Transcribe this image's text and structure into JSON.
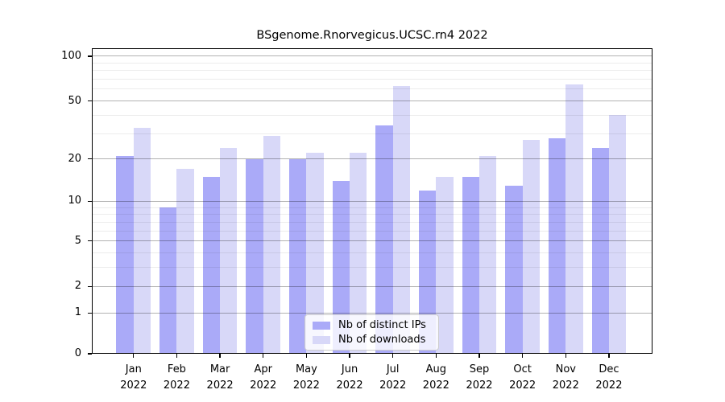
{
  "chart_data": {
    "type": "bar",
    "title": "BSgenome.Rnorvegicus.UCSC.rn4 2022",
    "xlabel": "",
    "ylabel": "",
    "year": "2022",
    "months": [
      "Jan",
      "Feb",
      "Mar",
      "Apr",
      "May",
      "Jun",
      "Jul",
      "Aug",
      "Sep",
      "Oct",
      "Nov",
      "Dec"
    ],
    "categories": [
      "Jan 2022",
      "Feb 2022",
      "Mar 2022",
      "Apr 2022",
      "May 2022",
      "Jun 2022",
      "Jul 2022",
      "Aug 2022",
      "Sep 2022",
      "Oct 2022",
      "Nov 2022",
      "Dec 2022"
    ],
    "series": [
      {
        "name": "Nb of distinct IPs",
        "color": "#aaaaf8",
        "values": [
          21,
          9,
          15,
          20,
          20,
          14,
          34,
          12,
          15,
          13,
          28,
          24
        ]
      },
      {
        "name": "Nb of downloads",
        "color": "#d8d8f8",
        "values": [
          33,
          17,
          24,
          29,
          22,
          22,
          63,
          15,
          21,
          27,
          65,
          40
        ]
      }
    ],
    "y_axis": {
      "scale": "log1p",
      "major_ticks": [
        0,
        1,
        2,
        5,
        10,
        20,
        50,
        100
      ],
      "minor_ticks": [
        3,
        4,
        6,
        7,
        8,
        9,
        30,
        40,
        60,
        70,
        80,
        90
      ],
      "range": [
        0,
        113
      ]
    },
    "grid": {
      "major": true,
      "minor": true
    },
    "legend": {
      "position": "lower center",
      "entries": [
        "Nb of distinct IPs",
        "Nb of downloads"
      ]
    }
  },
  "colors": {
    "bar_distinct_ips": "#aaaaf8",
    "bar_downloads": "#d8d8f8",
    "major_grid": "#b0b0b0",
    "minor_grid": "#ececec",
    "axis": "#000000",
    "background": "#ffffff"
  }
}
